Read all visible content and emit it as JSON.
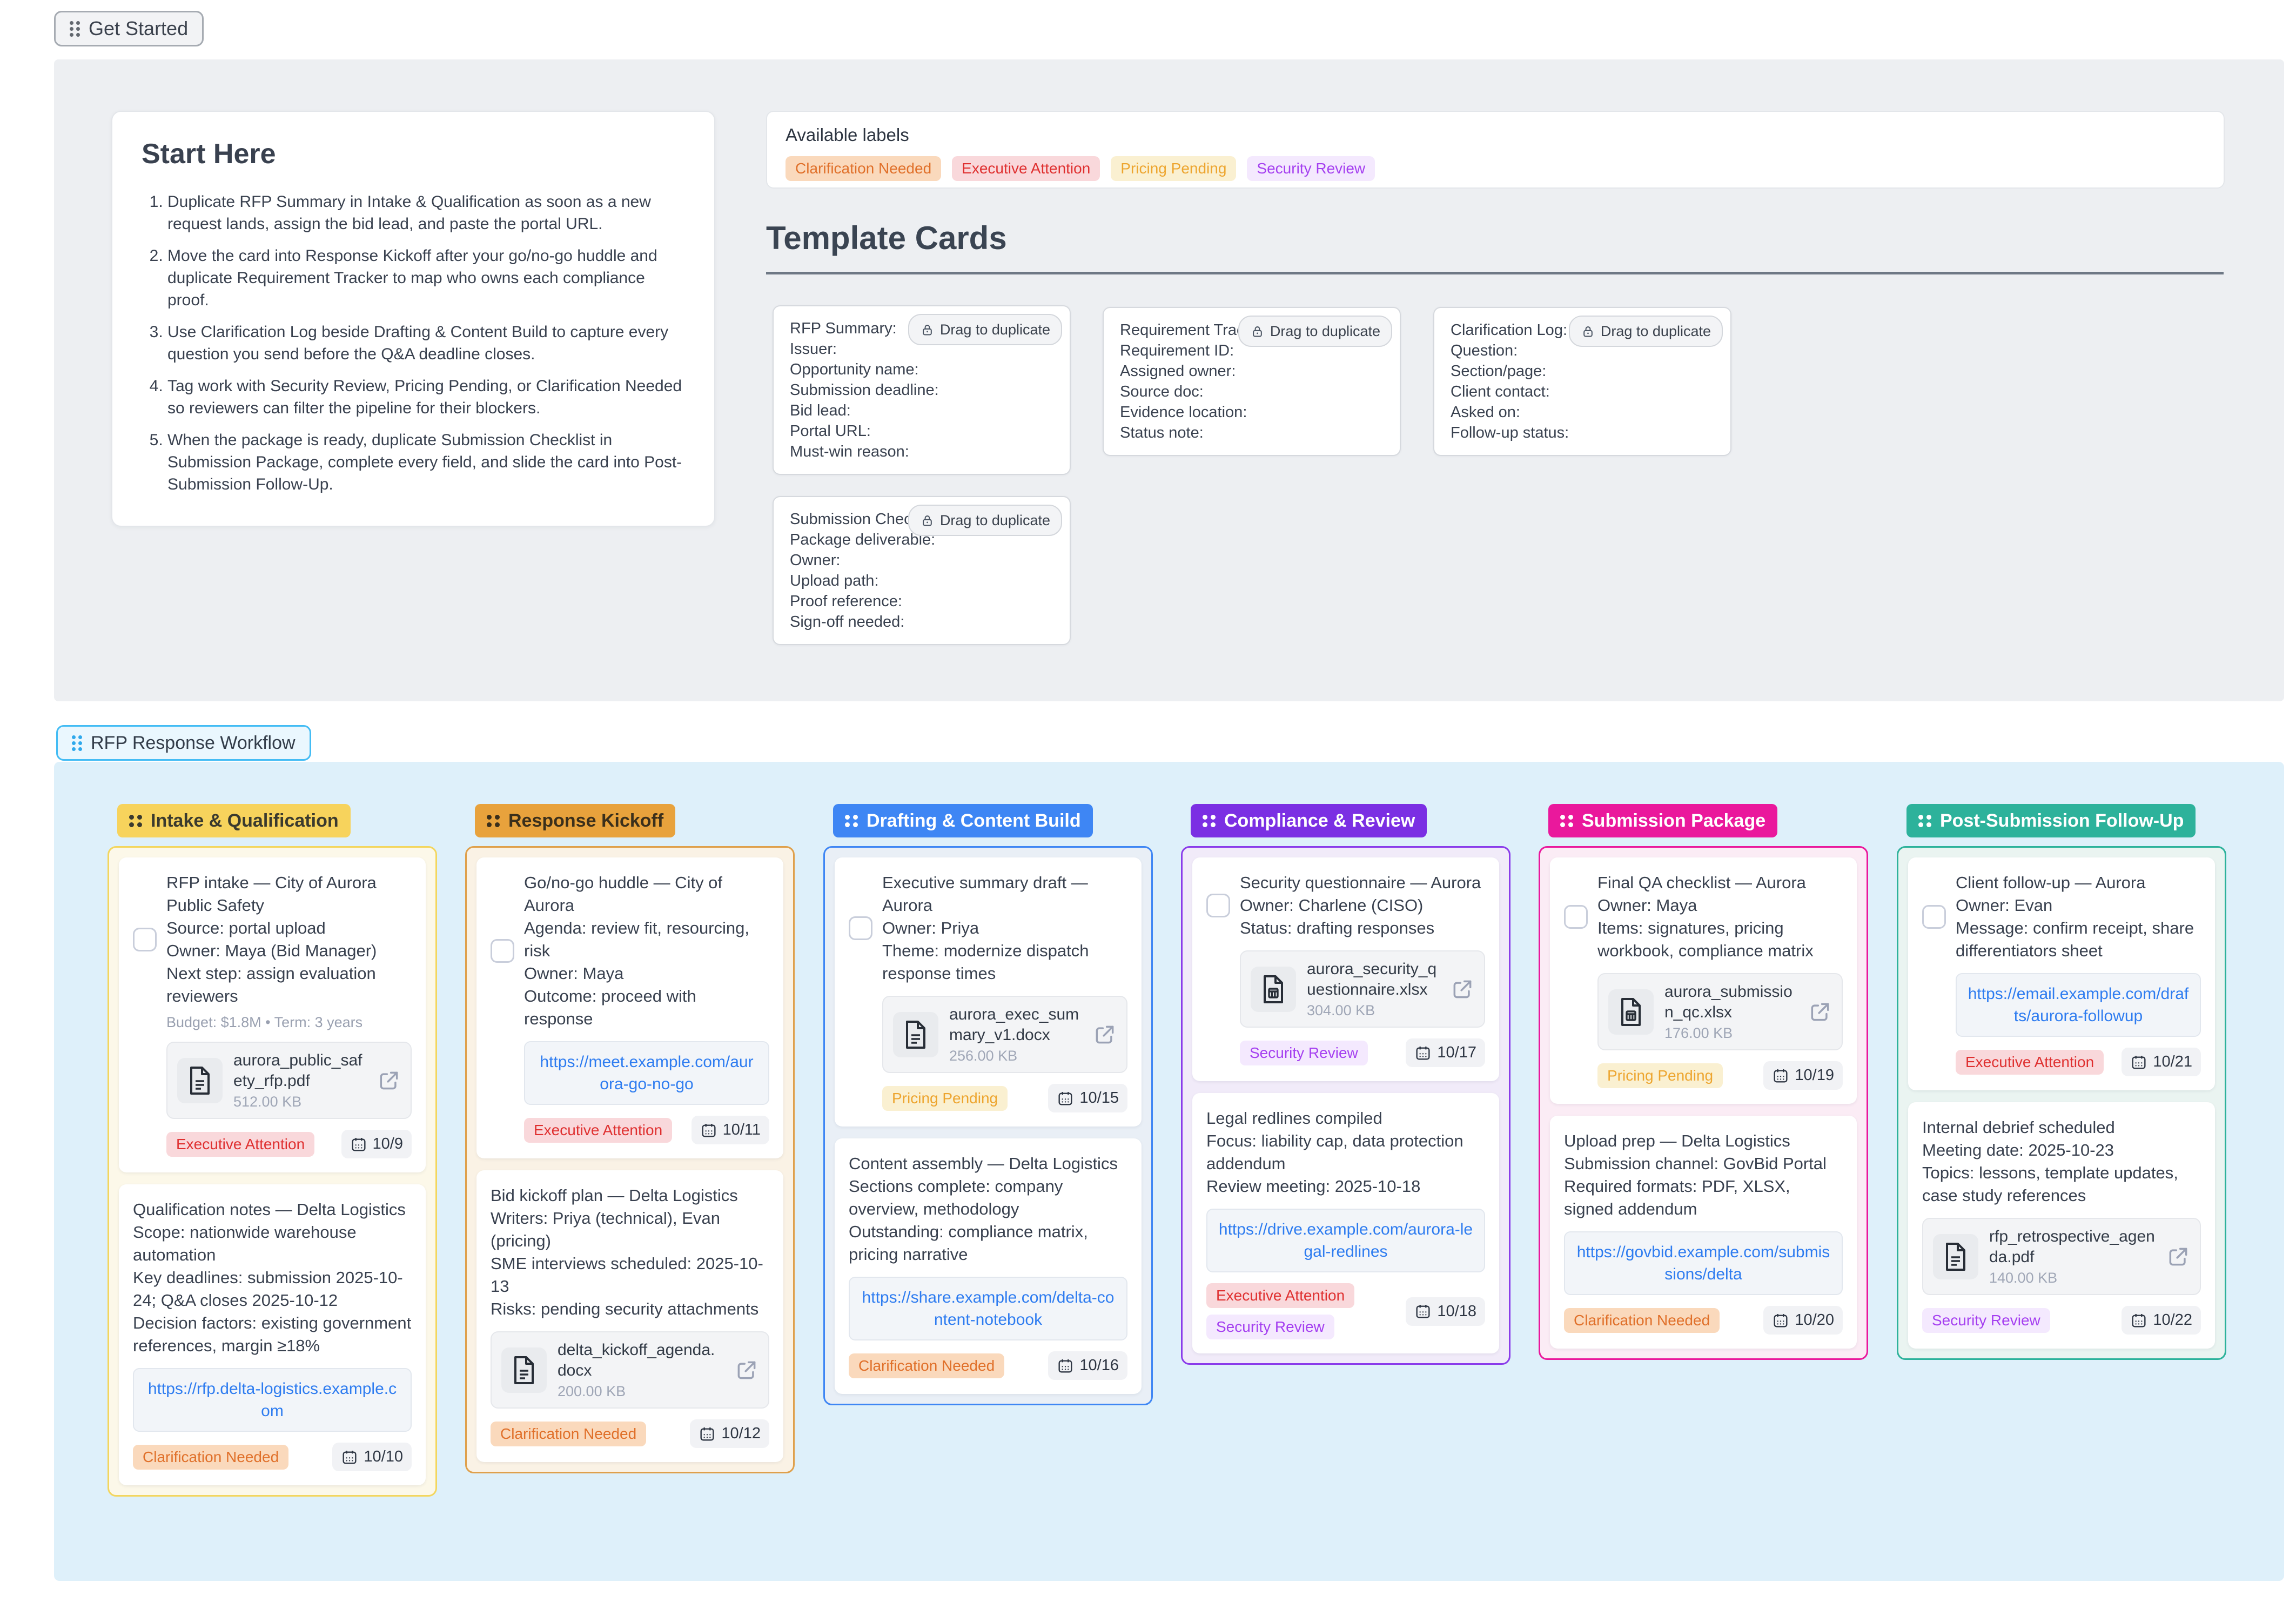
{
  "get_started": {
    "label": "Get Started"
  },
  "intro_panel": {
    "start_here": {
      "title": "Start Here",
      "steps": [
        "Duplicate RFP Summary in Intake & Qualification as soon as a new request lands, assign the bid lead, and paste the portal URL.",
        "Move the card into Response Kickoff after your go/no-go huddle and duplicate Requirement Tracker to map who owns each compliance proof.",
        "Use Clarification Log beside Drafting & Content Build to capture every question you send before the Q&A deadline closes.",
        "Tag work with Security Review, Pricing Pending, or Clarification Needed so reviewers can filter the pipeline for their blockers.",
        "When the package is ready, duplicate Submission Checklist in Submission Package, complete every field, and slide the card into Post-Submission Follow-Up."
      ]
    },
    "available_labels": {
      "title": "Available labels",
      "labels": [
        "Clarification Needed",
        "Executive Attention",
        "Pricing Pending",
        "Security Review"
      ]
    },
    "templates": {
      "title": "Template Cards",
      "drag_badge": "Drag to duplicate",
      "cards": [
        {
          "title": "RFP Summary:",
          "fields": [
            "Issuer:",
            "Opportunity name:",
            "Submission deadline:",
            "Bid lead:",
            "Portal URL:",
            "Must-win reason:"
          ]
        },
        {
          "title": "Requirement Tracker:",
          "fields": [
            "Requirement ID:",
            "Assigned owner:",
            "Source doc:",
            "Evidence location:",
            "Status note:"
          ]
        },
        {
          "title": "Clarification Log:",
          "fields": [
            "Question:",
            "Section/page:",
            "Client contact:",
            "Asked on:",
            "Follow-up status:"
          ]
        },
        {
          "title": "Submission Checklist:",
          "fields": [
            "Package deliverable:",
            "Owner:",
            "Upload path:",
            "Proof reference:",
            "Sign-off needed:"
          ]
        }
      ]
    }
  },
  "label_styles": {
    "Clarification Needed": {
      "bg": "#FAD9BC",
      "fg": "#E0702A"
    },
    "Executive Attention": {
      "bg": "#F9D8DB",
      "fg": "#DF3030"
    },
    "Pricing Pending": {
      "bg": "#FAF0D1",
      "fg": "#EDA52F"
    },
    "Security Review": {
      "bg": "#F4E9FE",
      "fg": "#A540F0"
    }
  },
  "workflow": {
    "title": "RFP Response Workflow",
    "columns": [
      {
        "name": "Intake & Qualification",
        "theme": {
          "header_bg": "#F7D35C",
          "header_fg": "#3A3A2E",
          "border": "#F3D65E",
          "bg": "#FCF8E9"
        },
        "cards": [
          {
            "checkbox": true,
            "body": "RFP intake — City of Aurora Public Safety\nSource: portal upload\nOwner: Maya (Bid Manager)\nNext step: assign evaluation reviewers",
            "meta": "Budget: $1.8M • Term: 3 years",
            "attachment": {
              "name": "aurora_public_safety_rfp.pdf",
              "size": "512.00 KB",
              "kind": "document"
            },
            "link": null,
            "labels": [
              "Executive Attention"
            ],
            "date": "10/9"
          },
          {
            "checkbox": false,
            "body": "Qualification notes — Delta Logistics\nScope: nationwide warehouse automation\nKey deadlines: submission 2025-10-24; Q&A closes 2025-10-12\nDecision factors: existing government references, margin ≥18%",
            "meta": null,
            "attachment": null,
            "link": "https://rfp.delta-logistics.example.com",
            "labels": [
              "Clarification Needed"
            ],
            "date": "10/10"
          }
        ]
      },
      {
        "name": "Response Kickoff",
        "theme": {
          "header_bg": "#E8A23C",
          "header_fg": "#3B2F1B",
          "border": "#DFA04B",
          "bg": "#FAF2E5"
        },
        "cards": [
          {
            "checkbox": true,
            "body": "Go/no-go huddle — City of Aurora\nAgenda: review fit, resourcing, risk\nOwner: Maya\nOutcome: proceed with response",
            "meta": null,
            "attachment": null,
            "link": "https://meet.example.com/aurora-go-no-go",
            "labels": [
              "Executive Attention"
            ],
            "date": "10/11"
          },
          {
            "checkbox": false,
            "body": "Bid kickoff plan — Delta Logistics\nWriters: Priya (technical), Evan (pricing)\nSME interviews scheduled: 2025-10-13\nRisks: pending security attachments",
            "meta": null,
            "attachment": {
              "name": "delta_kickoff_agenda.docx",
              "size": "200.00 KB",
              "kind": "document"
            },
            "link": null,
            "labels": [
              "Clarification Needed"
            ],
            "date": "10/12"
          }
        ]
      },
      {
        "name": "Drafting & Content Build",
        "theme": {
          "header_bg": "#3E86F4",
          "header_fg": "#FFFFFF",
          "border": "#3E86F4",
          "bg": "#E9EFF6"
        },
        "cards": [
          {
            "checkbox": true,
            "body": "Executive summary draft — Aurora\nOwner: Priya\nTheme: modernize dispatch response times",
            "meta": null,
            "attachment": {
              "name": "aurora_exec_summary_v1.docx",
              "size": "256.00 KB",
              "kind": "document"
            },
            "link": null,
            "labels": [
              "Pricing Pending"
            ],
            "date": "10/15"
          },
          {
            "checkbox": false,
            "body": "Content assembly — Delta Logistics\nSections complete: company overview, methodology\nOutstanding: compliance matrix, pricing narrative",
            "meta": null,
            "attachment": null,
            "link": "https://share.example.com/delta-content-notebook",
            "labels": [
              "Clarification Needed"
            ],
            "date": "10/16"
          }
        ]
      },
      {
        "name": "Compliance & Review",
        "theme": {
          "header_bg": "#7B2FE3",
          "header_fg": "#FFFFFF",
          "border": "#8A3CEA",
          "bg": "#F1EBF9"
        },
        "cards": [
          {
            "checkbox": true,
            "body": "Security questionnaire — Aurora\nOwner: Charlene (CISO)\nStatus: drafting responses",
            "meta": null,
            "attachment": {
              "name": "aurora_security_questionnaire.xlsx",
              "size": "304.00 KB",
              "kind": "spreadsheet"
            },
            "link": null,
            "labels": [
              "Security Review"
            ],
            "date": "10/17"
          },
          {
            "checkbox": false,
            "body": "Legal redlines compiled\nFocus: liability cap, data protection addendum\nReview meeting: 2025-10-18",
            "meta": null,
            "attachment": null,
            "link": "https://drive.example.com/aurora-legal-redlines",
            "labels": [
              "Executive Attention",
              "Security Review"
            ],
            "date": "10/18"
          }
        ]
      },
      {
        "name": "Submission Package",
        "theme": {
          "header_bg": "#EA189C",
          "header_fg": "#FFFFFF",
          "border": "#EA189C",
          "bg": "#FBECF5"
        },
        "cards": [
          {
            "checkbox": true,
            "body": "Final QA checklist — Aurora\nOwner: Maya\nItems: signatures, pricing workbook, compliance matrix",
            "meta": null,
            "attachment": {
              "name": "aurora_submission_qc.xlsx",
              "size": "176.00 KB",
              "kind": "spreadsheet"
            },
            "link": null,
            "labels": [
              "Pricing Pending"
            ],
            "date": "10/19"
          },
          {
            "checkbox": false,
            "body": "Upload prep — Delta Logistics\nSubmission channel: GovBid Portal\nRequired formats: PDF, XLSX, signed addendum",
            "meta": null,
            "attachment": null,
            "link": "https://govbid.example.com/submissions/delta",
            "labels": [
              "Clarification Needed"
            ],
            "date": "10/20"
          }
        ]
      },
      {
        "name": "Post-Submission Follow-Up",
        "theme": {
          "header_bg": "#2DB29B",
          "header_fg": "#FFFFFF",
          "border": "#2DB29B",
          "bg": "#EAF4F1"
        },
        "cards": [
          {
            "checkbox": true,
            "body": "Client follow-up — Aurora\nOwner: Evan\nMessage: confirm receipt, share differentiators sheet",
            "meta": null,
            "attachment": null,
            "link": "https://email.example.com/drafts/aurora-followup",
            "labels": [
              "Executive Attention"
            ],
            "date": "10/21"
          },
          {
            "checkbox": false,
            "body": "Internal debrief scheduled\nMeeting date: 2025-10-23\nTopics: lessons, template updates, case study references",
            "meta": null,
            "attachment": {
              "name": "rfp_retrospective_agenda.pdf",
              "size": "140.00 KB",
              "kind": "document"
            },
            "link": null,
            "labels": [
              "Security Review"
            ],
            "date": "10/22"
          }
        ]
      }
    ]
  }
}
